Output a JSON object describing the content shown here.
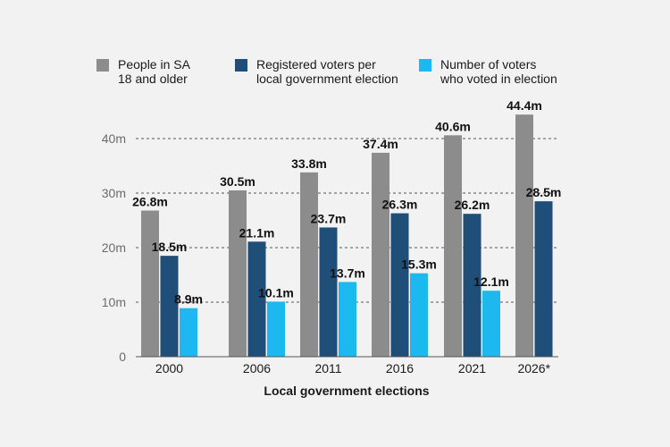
{
  "chart_data": {
    "type": "bar",
    "title": "",
    "xlabel": "Local government elections",
    "ylabel": "",
    "ylim": [
      0,
      45
    ],
    "yticks": [
      0,
      10,
      20,
      30,
      40
    ],
    "ytick_labels": [
      "0",
      "10m",
      "20m",
      "30m",
      "40m"
    ],
    "grid": true,
    "legend_placement": "top",
    "categories": [
      "2000",
      "2006",
      "2011",
      "2016",
      "2021",
      "2026*"
    ],
    "series": [
      {
        "name_lines": [
          "People in SA",
          "18 and older"
        ],
        "color": "#8c8c8c",
        "values": [
          26.8,
          30.5,
          33.8,
          37.4,
          40.6,
          44.4
        ],
        "labels": [
          "26.8m",
          "30.5m",
          "33.8m",
          "37.4m",
          "40.6m",
          "44.4m"
        ]
      },
      {
        "name_lines": [
          "Registered voters per",
          "local government election"
        ],
        "color": "#1f4e79",
        "values": [
          18.5,
          21.1,
          23.7,
          26.3,
          26.2,
          28.5
        ],
        "labels": [
          "18.5m",
          "21.1m",
          "23.7m",
          "26.3m",
          "26.2m",
          "28.5m"
        ]
      },
      {
        "name_lines": [
          "Number of voters",
          "who voted in election"
        ],
        "color": "#1db8f0",
        "values": [
          8.9,
          10.1,
          13.7,
          15.3,
          12.1,
          null
        ],
        "labels": [
          "8.9m",
          "10.1m",
          "13.7m",
          "15.3m",
          "12.1m",
          null
        ]
      }
    ]
  }
}
